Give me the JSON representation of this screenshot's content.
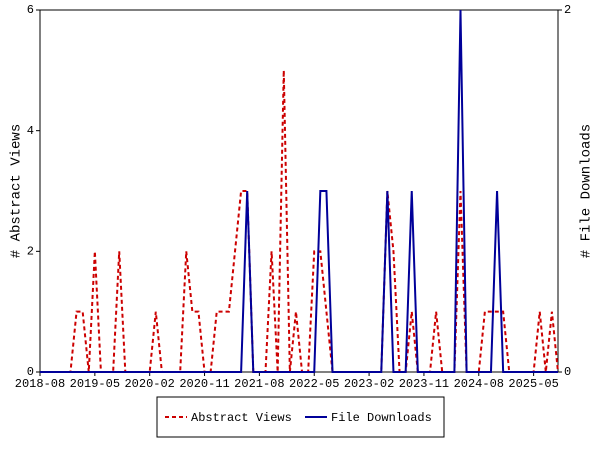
{
  "chart_data": {
    "type": "line",
    "ylabel": "# Abstract Views",
    "y2label": "# File Downloads",
    "x": [
      "2018-08",
      "2018-09",
      "2018-10",
      "2018-11",
      "2018-12",
      "2019-01",
      "2019-02",
      "2019-03",
      "2019-04",
      "2019-05",
      "2019-06",
      "2019-07",
      "2019-08",
      "2019-09",
      "2019-10",
      "2019-11",
      "2019-12",
      "2020-01",
      "2020-02",
      "2020-03",
      "2020-04",
      "2020-05",
      "2020-06",
      "2020-07",
      "2020-08",
      "2020-09",
      "2020-10",
      "2020-11",
      "2020-12",
      "2021-01",
      "2021-02",
      "2021-03",
      "2021-04",
      "2021-05",
      "2021-06",
      "2021-07",
      "2021-08",
      "2021-09",
      "2021-10",
      "2021-11",
      "2021-12",
      "2022-01",
      "2022-02",
      "2022-03",
      "2022-04",
      "2022-05",
      "2022-06",
      "2022-07",
      "2022-08",
      "2022-09",
      "2022-10",
      "2022-11",
      "2022-12",
      "2023-01",
      "2023-02",
      "2023-03",
      "2023-04",
      "2023-05",
      "2023-06",
      "2023-07",
      "2023-08",
      "2023-09",
      "2023-10",
      "2023-11",
      "2023-12",
      "2024-01",
      "2024-02",
      "2024-03",
      "2024-04",
      "2024-05",
      "2024-06",
      "2024-07",
      "2024-08",
      "2024-09",
      "2024-10",
      "2024-11",
      "2024-12",
      "2025-01",
      "2025-02",
      "2025-03",
      "2025-04",
      "2025-05",
      "2025-06",
      "2025-07",
      "2025-08",
      "2025-09"
    ],
    "xticks": [
      "2018-08",
      "2019-05",
      "2020-02",
      "2020-11",
      "2021-08",
      "2022-05",
      "2023-02",
      "2023-11",
      "2024-08",
      "2025-05"
    ],
    "ylim": [
      0,
      6
    ],
    "yticks": [
      0,
      2,
      4,
      6
    ],
    "y2lim": [
      0,
      2
    ],
    "y2ticks": [
      0,
      2
    ],
    "legend": "bottom",
    "series": [
      {
        "name": "Abstract Views",
        "color": "#cc0000",
        "dash": true,
        "values": [
          0,
          0,
          0,
          0,
          0,
          0,
          1,
          1,
          0,
          2,
          0,
          0,
          0,
          2,
          0,
          0,
          0,
          0,
          0,
          1,
          0,
          0,
          0,
          0,
          2,
          1,
          1,
          0,
          0,
          1,
          1,
          1,
          2,
          3,
          3,
          0,
          0,
          0,
          2,
          0,
          5,
          0,
          1,
          0,
          0,
          2,
          2,
          1,
          0,
          0,
          0,
          0,
          0,
          0,
          0,
          0,
          0,
          3,
          2,
          0,
          0,
          1,
          0,
          0,
          0,
          1,
          0,
          0,
          0,
          3,
          0,
          0,
          0,
          1,
          1,
          1,
          1,
          0,
          0,
          0,
          0,
          0,
          1,
          0,
          1,
          0
        ]
      },
      {
        "name": "File Downloads",
        "color": "#000099",
        "axis": "y2",
        "values": [
          0,
          0,
          0,
          0,
          0,
          0,
          0,
          0,
          0,
          0,
          0,
          0,
          0,
          0,
          0,
          0,
          0,
          0,
          0,
          0,
          0,
          0,
          0,
          0,
          0,
          0,
          0,
          0,
          0,
          0,
          0,
          0,
          0,
          0,
          1,
          0,
          0,
          0,
          0,
          0,
          0,
          0,
          0,
          0,
          0,
          0,
          1,
          1,
          0,
          0,
          0,
          0,
          0,
          0,
          0,
          0,
          0,
          1,
          0,
          0,
          0,
          1,
          0,
          0,
          0,
          0,
          0,
          0,
          0,
          2,
          0,
          0,
          0,
          0,
          0,
          1,
          0,
          0,
          0,
          0,
          0,
          0,
          0,
          0,
          0,
          0
        ]
      }
    ]
  }
}
